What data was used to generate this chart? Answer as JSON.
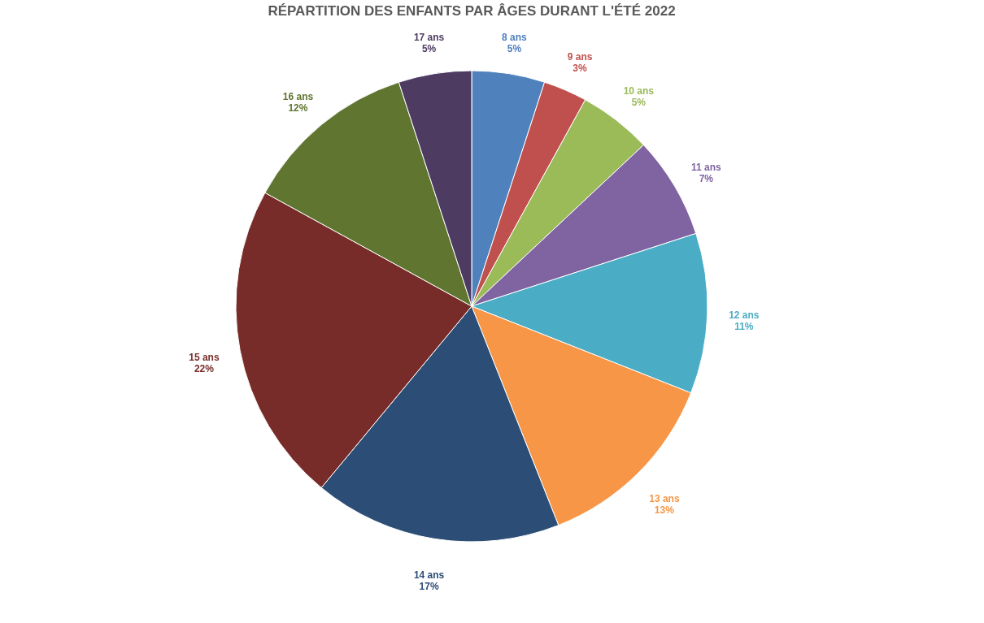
{
  "chart_data": {
    "type": "pie",
    "title": "RÉPARTITION DES ENFANTS PAR ÂGES DURANT L'ÉTÉ 2022",
    "categories": [
      "8 ans",
      "9 ans",
      "10 ans",
      "11 ans",
      "12 ans",
      "13 ans",
      "14 ans",
      "15 ans",
      "16 ans",
      "17 ans"
    ],
    "values": [
      5,
      3,
      5,
      7,
      11,
      13,
      17,
      22,
      12,
      5
    ],
    "value_labels": [
      "5%",
      "3%",
      "5%",
      "7%",
      "11%",
      "13%",
      "17%",
      "22%",
      "12%",
      "5%"
    ],
    "colors": [
      "#4f81bd",
      "#c0504d",
      "#9bbb59",
      "#8064a2",
      "#4bacc6",
      "#f79646",
      "#2c4d75",
      "#772c2a",
      "#5f7530",
      "#4d3b62"
    ],
    "legend": false
  }
}
